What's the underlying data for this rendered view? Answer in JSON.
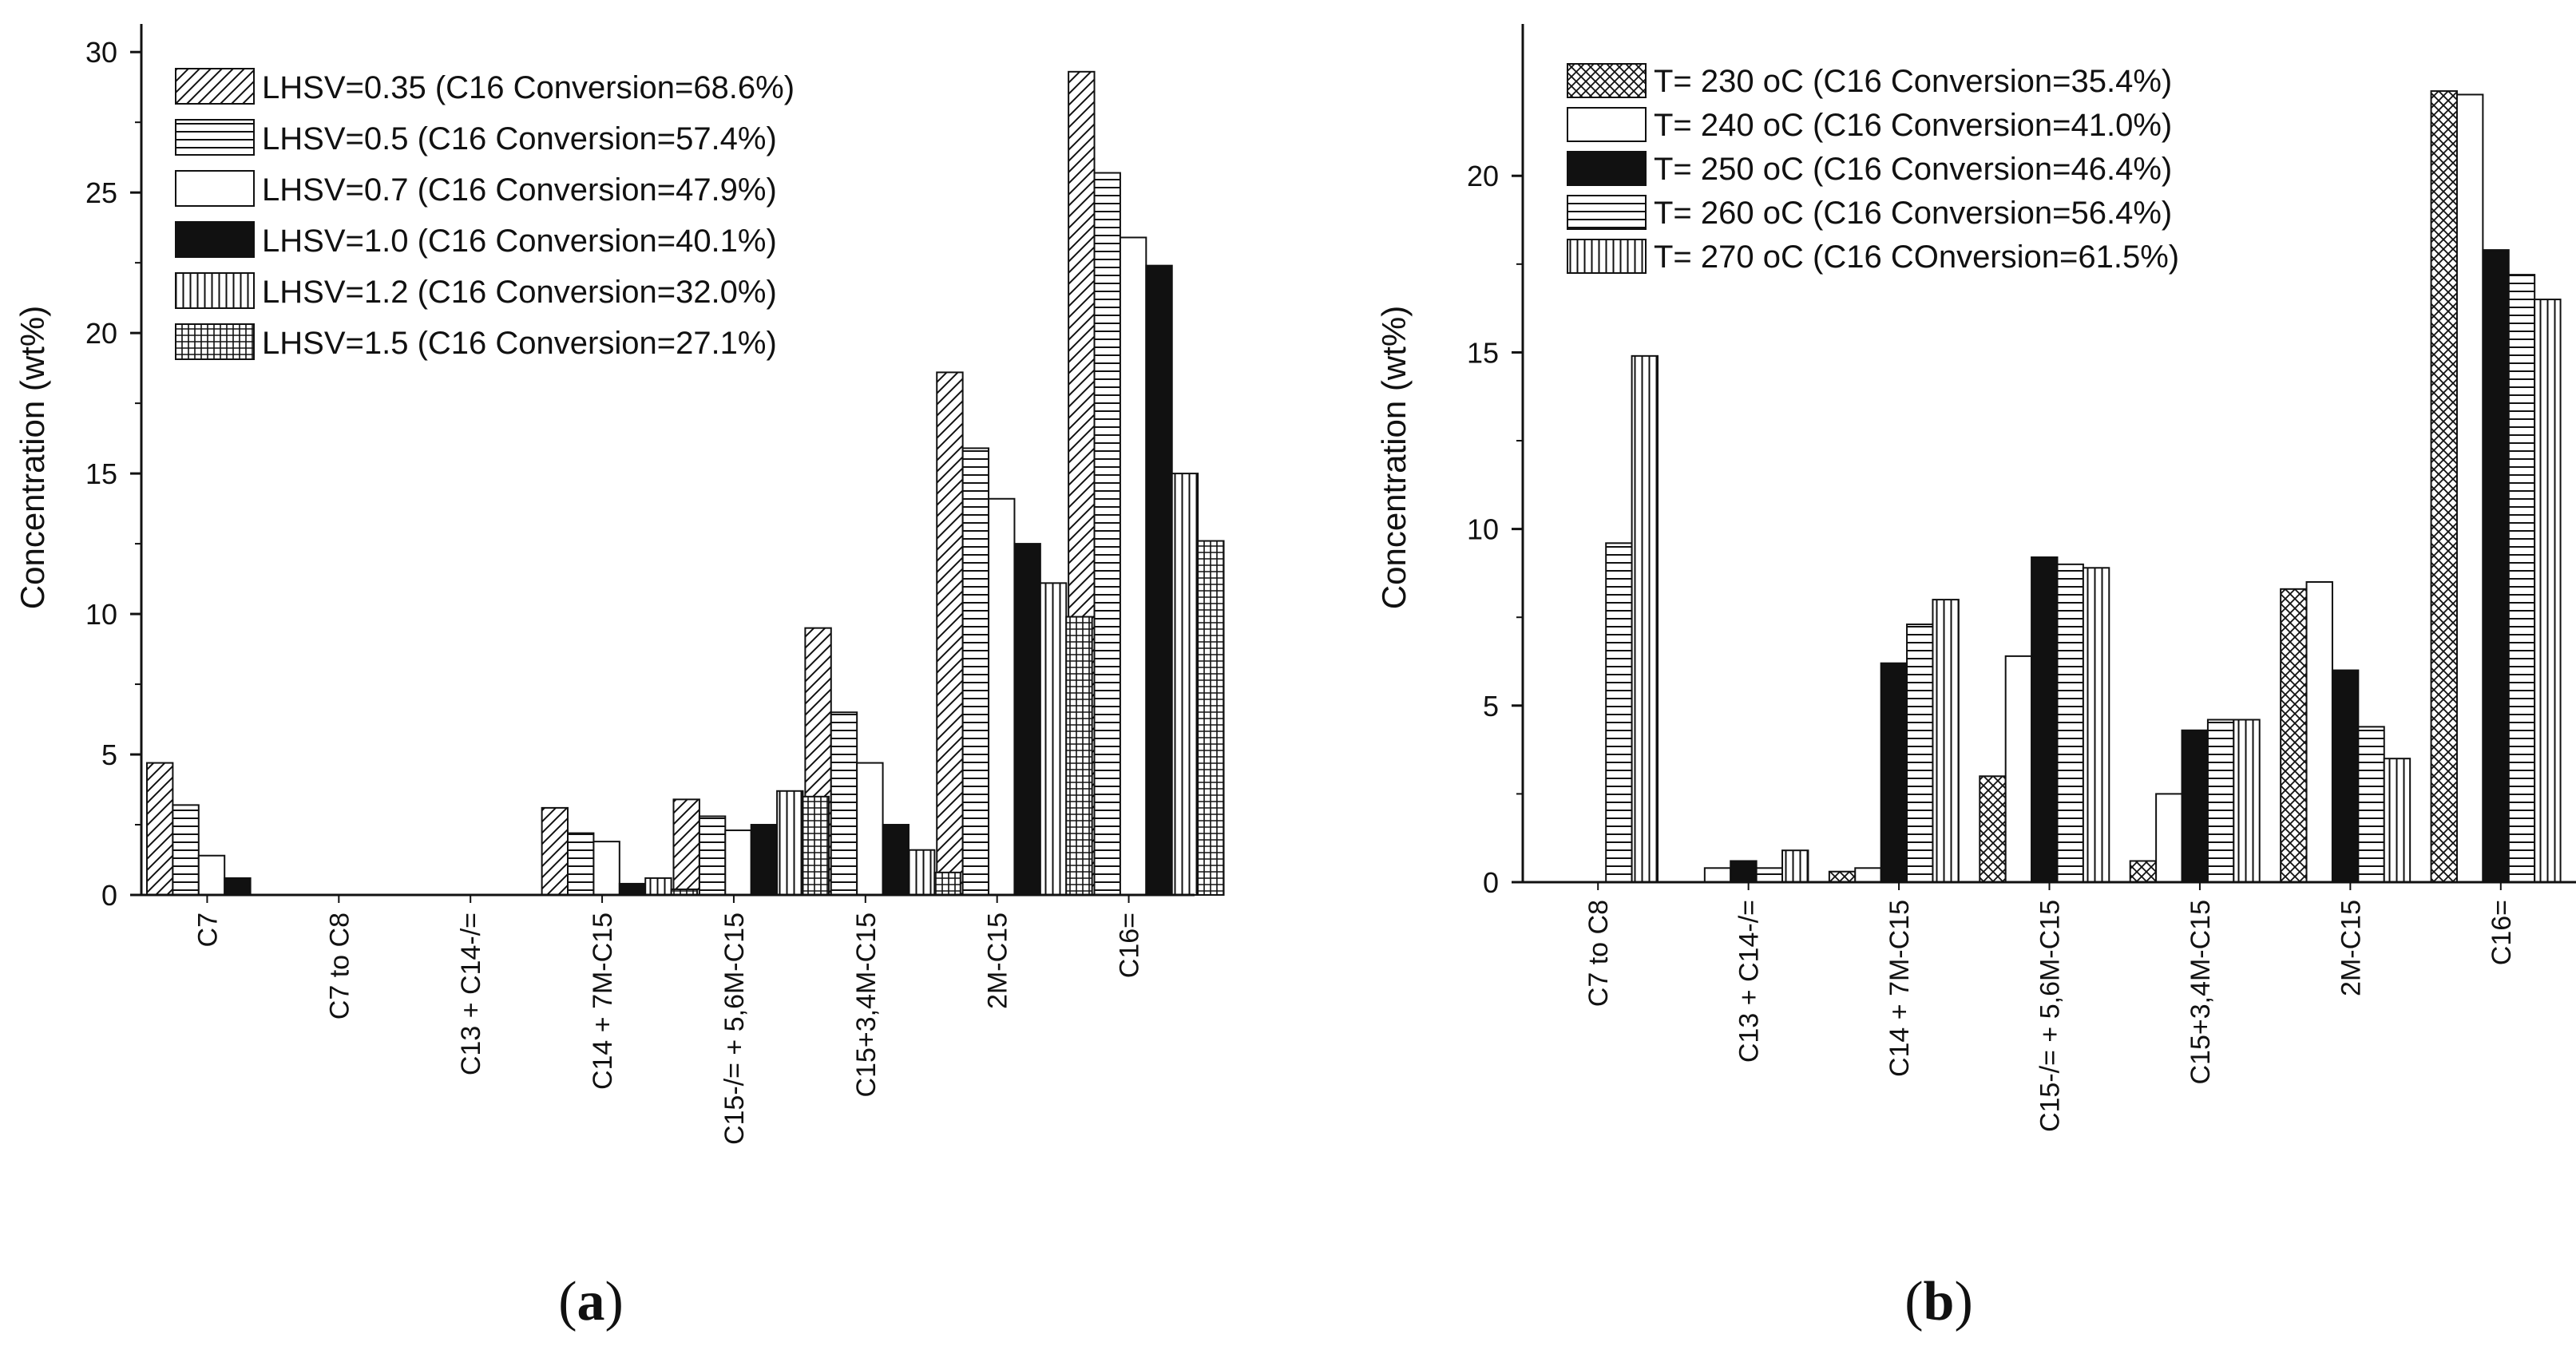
{
  "chart_data": [
    {
      "type": "bar",
      "panel_label": "(a)",
      "panel_letter": "a",
      "ylabel": "Concentration (wt%)",
      "xlabel": "",
      "ylim": [
        0,
        31
      ],
      "yticks": [
        0,
        5,
        10,
        15,
        20,
        25,
        30
      ],
      "legend_position": "top-center",
      "categories": [
        "C7",
        "C7 to C8",
        "C13 + C14-/=",
        "C14 + 7M-C15",
        "C15-/= + 5,6M-C15",
        "C15+3,4M-C15",
        "2M-C15",
        "C16="
      ],
      "series": [
        {
          "name": "LHSV=0.35 (C16 Conversion=68.6%)",
          "pattern": "diag",
          "values": [
            4.7,
            0,
            0,
            3.1,
            3.4,
            9.5,
            18.6,
            29.3
          ]
        },
        {
          "name": "LHSV=0.5 (C16 Conversion=57.4%)",
          "pattern": "hlines",
          "values": [
            3.2,
            0,
            0,
            2.2,
            2.8,
            6.5,
            15.9,
            25.7
          ]
        },
        {
          "name": "LHSV=0.7 (C16 Conversion=47.9%)",
          "pattern": "white",
          "values": [
            1.4,
            0,
            0,
            1.9,
            2.3,
            4.7,
            14.1,
            23.4
          ]
        },
        {
          "name": "LHSV=1.0 (C16 Conversion=40.1%)",
          "pattern": "black",
          "values": [
            0.6,
            0,
            0,
            0.4,
            2.5,
            2.5,
            12.5,
            22.4
          ]
        },
        {
          "name": "LHSV=1.2 (C16 Conversion=32.0%)",
          "pattern": "vlines",
          "values": [
            0,
            0,
            0,
            0.6,
            3.7,
            1.6,
            11.1,
            15.0
          ]
        },
        {
          "name": "LHSV=1.5 (C16 Conversion=27.1%)",
          "pattern": "grid",
          "values": [
            0,
            0,
            0,
            0.2,
            3.5,
            0.8,
            9.9,
            12.6
          ]
        }
      ]
    },
    {
      "type": "bar",
      "panel_label": "(b)",
      "panel_letter": "b",
      "ylabel": "Concentration (wt%)",
      "xlabel": "",
      "ylim": [
        0,
        24.3
      ],
      "yticks": [
        0,
        5,
        10,
        15,
        20
      ],
      "legend_position": "top-center",
      "categories": [
        "C7 to C8",
        "C13 + C14-/=",
        "C14 + 7M-C15",
        "C15-/= + 5,6M-C15",
        "C15+3,4M-C15",
        "2M-C15",
        "C16="
      ],
      "series": [
        {
          "name": "T= 230 oC (C16 Conversion=35.4%)",
          "pattern": "cross",
          "values": [
            0,
            0,
            0.3,
            3.0,
            0.6,
            8.3,
            22.4
          ]
        },
        {
          "name": "T= 240 oC (C16 Conversion=41.0%)",
          "pattern": "white",
          "values": [
            0,
            0.4,
            0.4,
            6.4,
            2.5,
            8.5,
            22.3
          ]
        },
        {
          "name": "T= 250 oC (C16 Conversion=46.4%)",
          "pattern": "black",
          "values": [
            0,
            0.6,
            6.2,
            9.2,
            4.3,
            6.0,
            17.9
          ]
        },
        {
          "name": "T= 260 oC (C16 Conversion=56.4%)",
          "pattern": "hlines",
          "values": [
            9.6,
            0.4,
            7.3,
            9.0,
            4.6,
            4.4,
            17.2
          ]
        },
        {
          "name": "T= 270 oC (C16 COnversion=61.5%)",
          "pattern": "vlines",
          "values": [
            14.9,
            0.9,
            8.0,
            8.9,
            4.6,
            3.5,
            16.5
          ]
        }
      ]
    }
  ]
}
